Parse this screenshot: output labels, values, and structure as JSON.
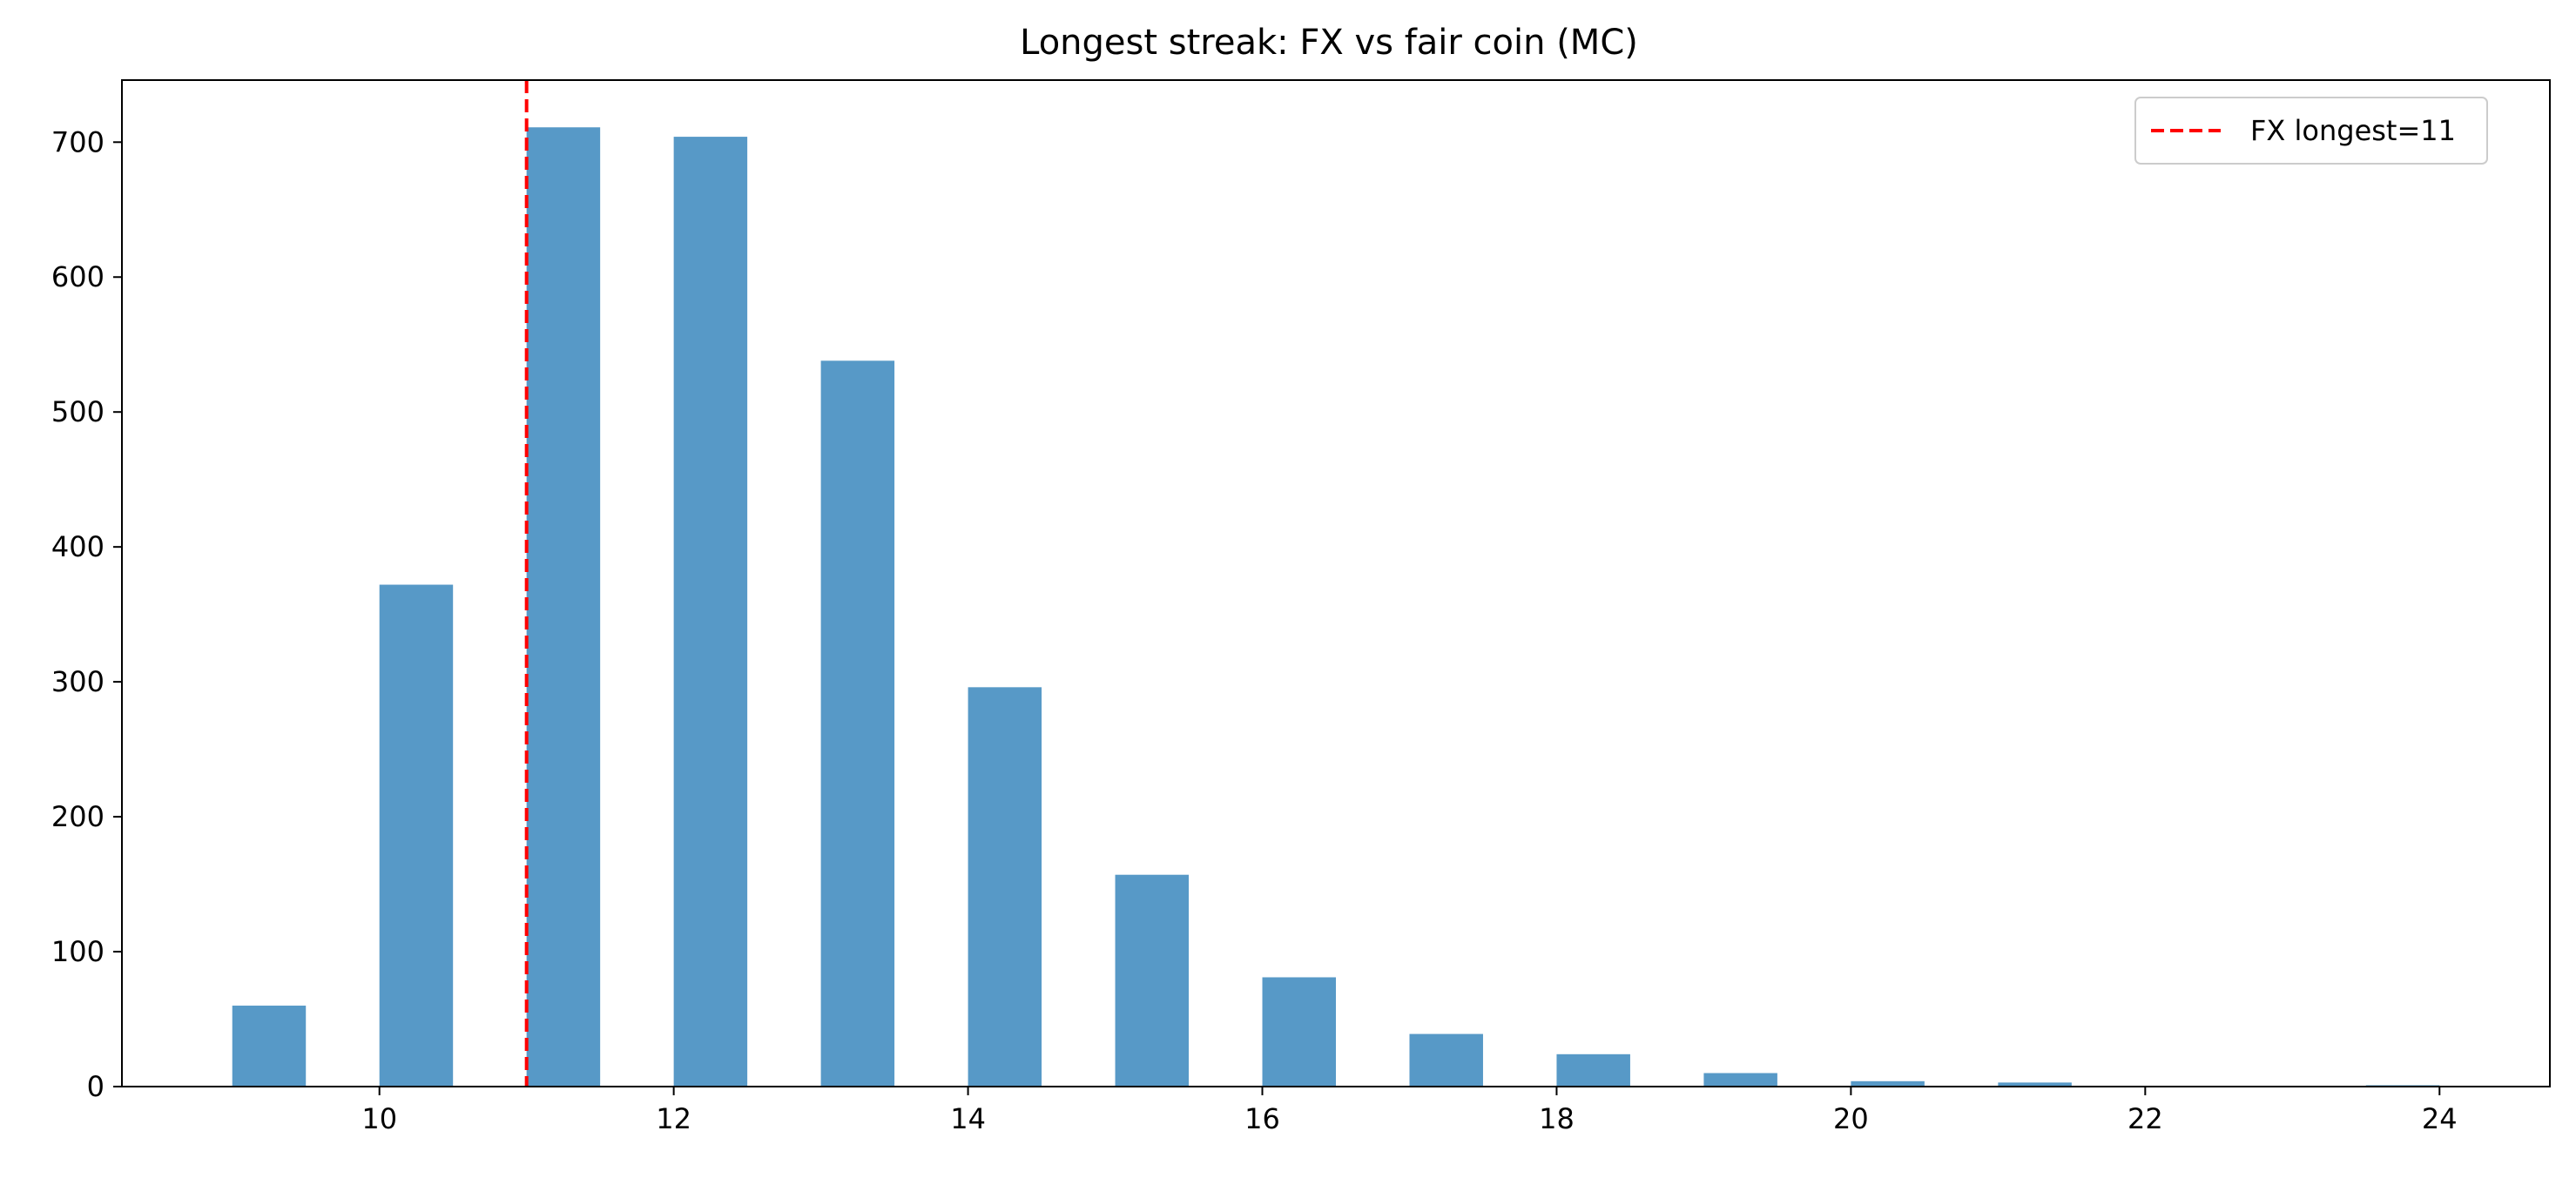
{
  "chart_data": {
    "type": "bar",
    "title": "Longest streak: FX vs fair coin (MC)",
    "xlabel": "",
    "ylabel": "",
    "xlim": [
      8.25,
      24.75
    ],
    "ylim": [
      0,
      746
    ],
    "x_ticks": [
      10,
      12,
      14,
      16,
      18,
      20,
      22,
      24
    ],
    "y_ticks": [
      0,
      100,
      200,
      300,
      400,
      500,
      600,
      700
    ],
    "bin_width": 0.5,
    "bins": [
      {
        "x": 9,
        "value": 60
      },
      {
        "x": 10,
        "value": 372
      },
      {
        "x": 11,
        "value": 711
      },
      {
        "x": 12,
        "value": 704
      },
      {
        "x": 13,
        "value": 538
      },
      {
        "x": 14,
        "value": 296
      },
      {
        "x": 15,
        "value": 157
      },
      {
        "x": 16,
        "value": 81
      },
      {
        "x": 17,
        "value": 39
      },
      {
        "x": 18,
        "value": 24
      },
      {
        "x": 19,
        "value": 10
      },
      {
        "x": 20,
        "value": 4
      },
      {
        "x": 21,
        "value": 3
      },
      {
        "x": 22,
        "value": 0
      },
      {
        "x": 23,
        "value": 0
      },
      {
        "x": 23.5,
        "value": 1
      }
    ],
    "bar_color": "#5799c7",
    "reference_line": {
      "x": 11,
      "label": "FX longest=11",
      "color": "#ff0000",
      "style": "dashed"
    },
    "legend_position": "top-right",
    "grid": false
  }
}
